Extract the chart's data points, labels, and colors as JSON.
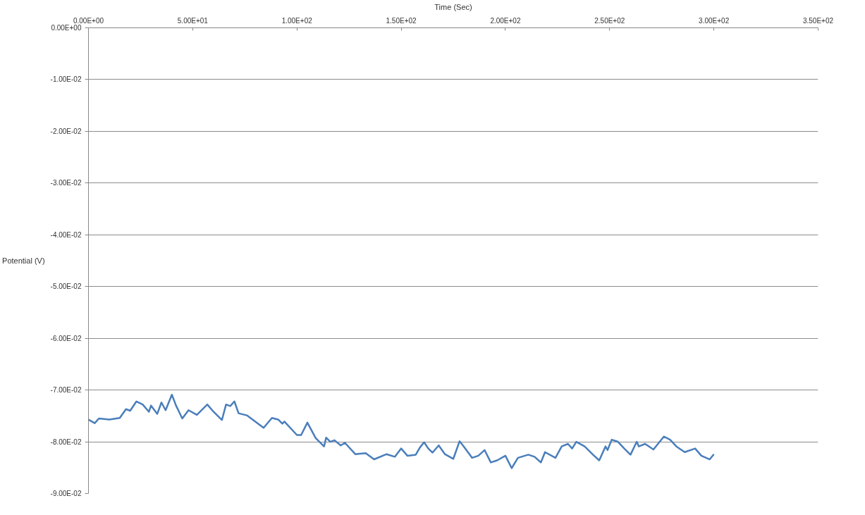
{
  "chart_data": {
    "type": "line",
    "xlabel": "Time (Sec)",
    "ylabel": "Potential (V)",
    "xlim": [
      0,
      350
    ],
    "ylim": [
      -0.09,
      0
    ],
    "xticks": [
      {
        "value": 0,
        "label": "0.00E+00"
      },
      {
        "value": 50,
        "label": "5.00E+01"
      },
      {
        "value": 100,
        "label": "1.00E+02"
      },
      {
        "value": 150,
        "label": "1.50E+02"
      },
      {
        "value": 200,
        "label": "2.00E+02"
      },
      {
        "value": 250,
        "label": "2.50E+02"
      },
      {
        "value": 300,
        "label": "3.00E+02"
      },
      {
        "value": 350,
        "label": "3.50E+02"
      }
    ],
    "yticks": [
      {
        "value": 0,
        "label": "0.00E+00"
      },
      {
        "value": -0.01,
        "label": "-1.00E-02"
      },
      {
        "value": -0.02,
        "label": "-2.00E-02"
      },
      {
        "value": -0.03,
        "label": "-3.00E-02"
      },
      {
        "value": -0.04,
        "label": "-4.00E-02"
      },
      {
        "value": -0.05,
        "label": "-5.00E-02"
      },
      {
        "value": -0.06,
        "label": "-6.00E-02"
      },
      {
        "value": -0.07,
        "label": "-7.00E-02"
      },
      {
        "value": -0.08,
        "label": "-8.00E-02"
      },
      {
        "value": -0.09,
        "label": "-9.00E-02"
      }
    ],
    "grid": "y",
    "marker": "none",
    "line_style": "solid",
    "series": [
      {
        "color": "#4a7ebb",
        "x": [
          0,
          3,
          5,
          10,
          15,
          18,
          20,
          23,
          26,
          29,
          30,
          33,
          35,
          37,
          40,
          42,
          45,
          48,
          52,
          57,
          60,
          64,
          66,
          68,
          70,
          72,
          76,
          84,
          88,
          91,
          93,
          94,
          100,
          102,
          105,
          109,
          113,
          114,
          116,
          118,
          121,
          123,
          128,
          133,
          137,
          143,
          147,
          150,
          153,
          157,
          159,
          161,
          163,
          165,
          168,
          171,
          175,
          178,
          180,
          184,
          187,
          190,
          193,
          196,
          200,
          203,
          206,
          211,
          214,
          217,
          219,
          224,
          227,
          230,
          232,
          234,
          238,
          242,
          245,
          248,
          249,
          251,
          254,
          257,
          260,
          263,
          264,
          267,
          271,
          276,
          279,
          282,
          286,
          291,
          294,
          298,
          300
        ],
        "values": [
          -0.0757,
          -0.0764,
          -0.0755,
          -0.0757,
          -0.0754,
          -0.0737,
          -0.074,
          -0.0722,
          -0.0728,
          -0.0742,
          -0.073,
          -0.0746,
          -0.0724,
          -0.0739,
          -0.0709,
          -0.073,
          -0.0755,
          -0.0739,
          -0.0748,
          -0.0728,
          -0.0742,
          -0.0758,
          -0.0728,
          -0.0731,
          -0.0722,
          -0.0745,
          -0.0749,
          -0.0773,
          -0.0754,
          -0.0757,
          -0.0765,
          -0.0761,
          -0.0787,
          -0.0787,
          -0.0763,
          -0.0793,
          -0.0809,
          -0.0792,
          -0.08,
          -0.0797,
          -0.0807,
          -0.0802,
          -0.0824,
          -0.0822,
          -0.0834,
          -0.0824,
          -0.0829,
          -0.0813,
          -0.0827,
          -0.0825,
          -0.0811,
          -0.0801,
          -0.0813,
          -0.0821,
          -0.0807,
          -0.0824,
          -0.0833,
          -0.0799,
          -0.0809,
          -0.0831,
          -0.0827,
          -0.0816,
          -0.084,
          -0.0836,
          -0.0827,
          -0.0851,
          -0.0831,
          -0.0825,
          -0.0829,
          -0.084,
          -0.082,
          -0.0831,
          -0.0809,
          -0.0804,
          -0.0813,
          -0.08,
          -0.0809,
          -0.0825,
          -0.0836,
          -0.0809,
          -0.0816,
          -0.0796,
          -0.08,
          -0.0813,
          -0.0825,
          -0.08,
          -0.0809,
          -0.0804,
          -0.0815,
          -0.079,
          -0.0796,
          -0.0809,
          -0.082,
          -0.0813,
          -0.0827,
          -0.0834,
          -0.0824
        ]
      }
    ]
  }
}
